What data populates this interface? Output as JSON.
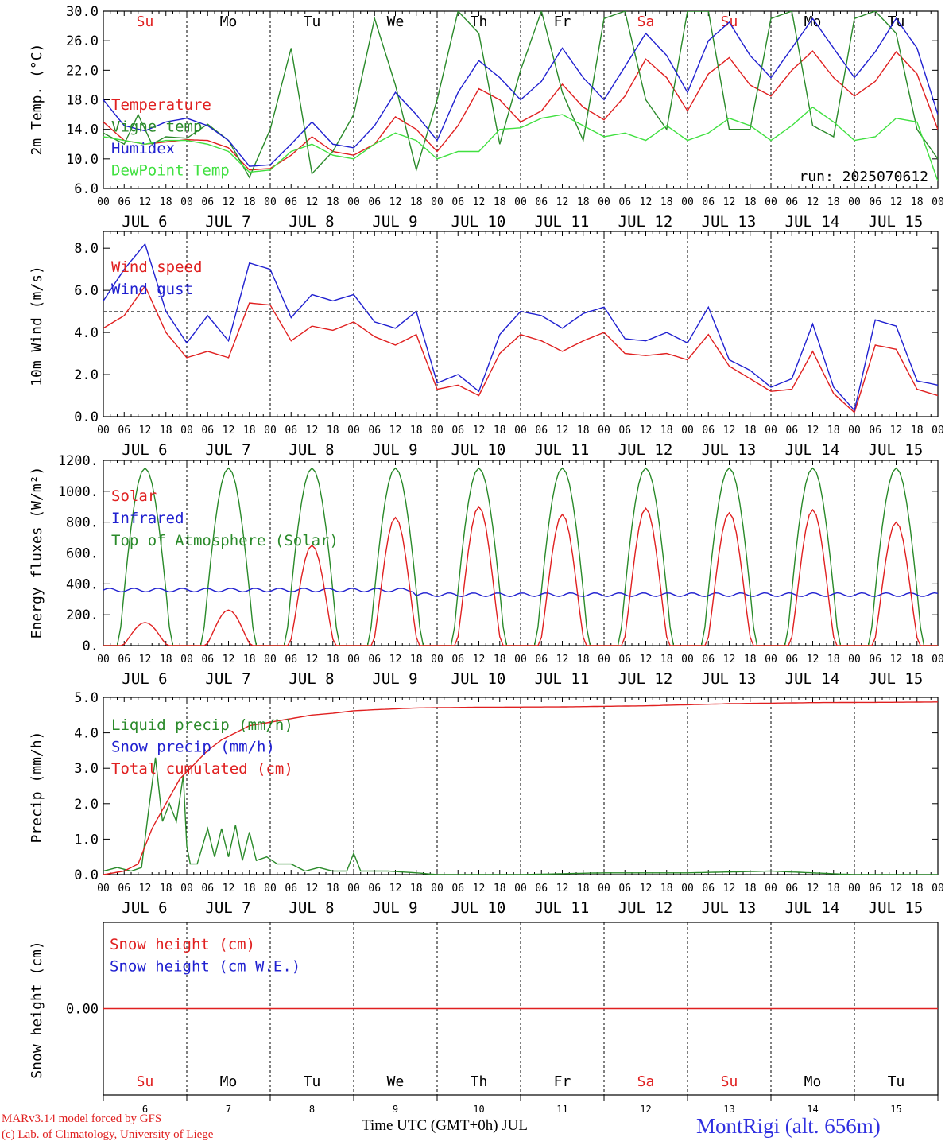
{
  "common": {
    "hour_labels": [
      "00",
      "06",
      "12",
      "18"
    ],
    "end_label": "00",
    "date_month": "JUL",
    "dates": [
      "6",
      "7",
      "8",
      "9",
      "10",
      "11",
      "12",
      "13",
      "14",
      "15"
    ],
    "weekdays": [
      "Su",
      "Mo",
      "Tu",
      "We",
      "Th",
      "Fr",
      "Sa",
      "Su",
      "Mo",
      "Tu"
    ],
    "weekday_colors": [
      "#e02020",
      "#000000",
      "#000000",
      "#000000",
      "#000000",
      "#000000",
      "#e02020",
      "#e02020",
      "#000000",
      "#000000"
    ],
    "x_range_hours": [
      0,
      240
    ]
  },
  "chart_data": [
    {
      "type": "line",
      "ylabel": "2m Temp. (°C)",
      "ylim": [
        6,
        30
      ],
      "yticks": [
        "6.0",
        "10.0",
        "14.0",
        "18.0",
        "22.0",
        "26.0",
        "30.0"
      ],
      "annotation": "run: 2025070612",
      "x_unit": "hours since JUL 6 00 UTC",
      "series": [
        {
          "name": "Temperature",
          "color": "#e02020",
          "x": [
            0,
            6,
            12,
            18,
            24,
            30,
            36,
            42,
            48,
            54,
            60,
            66,
            72,
            78,
            84,
            90,
            96,
            102,
            108,
            114,
            120,
            126,
            132,
            138,
            144,
            150,
            156,
            162,
            168,
            174,
            180,
            186,
            192,
            198,
            204,
            210,
            216,
            222,
            228,
            234,
            240
          ],
          "values": [
            15.0,
            12.5,
            12.0,
            12.3,
            12.6,
            12.5,
            11.5,
            8.5,
            8.7,
            10.5,
            13.0,
            11.0,
            10.5,
            12.0,
            15.7,
            14.0,
            11.0,
            14.5,
            19.5,
            18.0,
            15.0,
            16.5,
            20.1,
            17.0,
            15.3,
            18.5,
            23.5,
            21.0,
            16.5,
            21.5,
            23.7,
            20.0,
            18.5,
            22.0,
            24.6,
            21.0,
            18.5,
            20.5,
            24.5,
            21.5,
            14.0
          ]
        },
        {
          "name": "Vigne temp",
          "color": "#2a8a2a",
          "x": [
            0,
            6,
            10,
            14,
            18,
            24,
            30,
            36,
            42,
            48,
            54,
            60,
            66,
            72,
            78,
            84,
            90,
            96,
            102,
            108,
            114,
            120,
            126,
            132,
            138,
            144,
            150,
            156,
            162,
            168,
            174,
            180,
            186,
            192,
            198,
            204,
            210,
            216,
            222,
            228,
            234,
            240
          ],
          "values": [
            13.5,
            12.0,
            16.0,
            12.0,
            13.0,
            12.8,
            14.7,
            12.5,
            7.5,
            14.0,
            25.0,
            8.0,
            11.0,
            16.0,
            29.0,
            20.0,
            8.5,
            18.0,
            30.0,
            27.0,
            12.0,
            22.0,
            30.0,
            19.0,
            12.5,
            29.0,
            30.0,
            18.0,
            14.0,
            30.0,
            30.0,
            14.0,
            14.0,
            29.0,
            30.0,
            14.5,
            13.0,
            29.0,
            30.0,
            27.0,
            14.0,
            10.0
          ]
        },
        {
          "name": "Humidex",
          "color": "#2020d0",
          "x": [
            0,
            6,
            12,
            18,
            24,
            30,
            36,
            42,
            48,
            54,
            60,
            66,
            72,
            78,
            84,
            90,
            96,
            102,
            108,
            114,
            120,
            126,
            132,
            138,
            144,
            150,
            156,
            162,
            168,
            174,
            180,
            186,
            192,
            198,
            204,
            210,
            216,
            222,
            228,
            234,
            240
          ],
          "values": [
            18.0,
            14.5,
            13.8,
            15.0,
            15.5,
            14.5,
            12.5,
            9.0,
            9.2,
            12.0,
            15.0,
            12.0,
            11.5,
            14.5,
            19.0,
            16.0,
            12.5,
            19.0,
            23.3,
            21.0,
            18.0,
            20.5,
            25.0,
            21.0,
            18.0,
            22.5,
            27.0,
            24.0,
            19.0,
            26.0,
            28.5,
            24.0,
            21.0,
            25.0,
            29.0,
            25.0,
            21.0,
            24.5,
            29.0,
            25.0,
            16.0
          ]
        },
        {
          "name": "DewPoint Temp",
          "color": "#40e040",
          "x": [
            0,
            6,
            12,
            18,
            24,
            30,
            36,
            42,
            48,
            54,
            60,
            66,
            72,
            78,
            84,
            90,
            96,
            102,
            108,
            114,
            120,
            126,
            132,
            138,
            144,
            150,
            156,
            162,
            168,
            174,
            180,
            186,
            192,
            198,
            204,
            210,
            216,
            222,
            228,
            234,
            240
          ],
          "values": [
            13.0,
            12.5,
            12.0,
            12.5,
            12.5,
            12.0,
            11.0,
            8.2,
            8.5,
            11.0,
            12.0,
            10.5,
            10.0,
            12.0,
            13.5,
            12.5,
            10.0,
            11.0,
            11.0,
            14.0,
            14.2,
            15.5,
            16.0,
            14.5,
            13.0,
            13.5,
            12.5,
            14.5,
            12.5,
            13.5,
            15.5,
            14.5,
            12.5,
            14.5,
            17.0,
            15.0,
            12.5,
            13.0,
            15.5,
            15.0,
            7.0
          ]
        }
      ]
    },
    {
      "type": "line",
      "ylabel": "10m Wind (m/s)",
      "ylim": [
        0,
        8.8
      ],
      "yticks": [
        "0.0",
        "2.0",
        "4.0",
        "6.0",
        "8.0"
      ],
      "reference_line": 5.0,
      "x_unit": "hours since JUL 6 00 UTC",
      "series": [
        {
          "name": "Wind speed",
          "color": "#e02020",
          "x": [
            0,
            6,
            12,
            18,
            24,
            30,
            36,
            42,
            48,
            54,
            60,
            66,
            72,
            78,
            84,
            90,
            96,
            102,
            108,
            114,
            120,
            126,
            132,
            138,
            144,
            150,
            156,
            162,
            168,
            174,
            180,
            186,
            192,
            198,
            204,
            210,
            216,
            222,
            228,
            234,
            240
          ],
          "values": [
            4.2,
            4.8,
            6.2,
            4.0,
            2.8,
            3.1,
            2.8,
            5.4,
            5.3,
            3.6,
            4.3,
            4.1,
            4.5,
            3.8,
            3.4,
            3.9,
            1.3,
            1.5,
            1.0,
            3.0,
            3.9,
            3.6,
            3.1,
            3.6,
            4.0,
            3.0,
            2.9,
            3.0,
            2.7,
            3.9,
            2.4,
            1.8,
            1.2,
            1.3,
            3.1,
            1.1,
            0.2,
            3.4,
            3.2,
            1.3,
            1.0
          ]
        },
        {
          "name": "Wind gust",
          "color": "#2020d0",
          "x": [
            0,
            6,
            12,
            18,
            24,
            30,
            36,
            42,
            48,
            54,
            60,
            66,
            72,
            78,
            84,
            90,
            96,
            102,
            108,
            114,
            120,
            126,
            132,
            138,
            144,
            150,
            156,
            162,
            168,
            174,
            180,
            186,
            192,
            198,
            204,
            210,
            216,
            222,
            228,
            234,
            240
          ],
          "values": [
            5.5,
            7.0,
            8.2,
            5.0,
            3.5,
            4.8,
            3.6,
            7.3,
            7.0,
            4.7,
            5.8,
            5.5,
            5.8,
            4.5,
            4.2,
            5.0,
            1.6,
            2.0,
            1.2,
            3.9,
            5.0,
            4.8,
            4.2,
            4.9,
            5.2,
            3.7,
            3.6,
            4.0,
            3.5,
            5.2,
            2.7,
            2.2,
            1.4,
            1.8,
            4.4,
            1.4,
            0.3,
            4.6,
            4.3,
            1.7,
            1.5
          ]
        }
      ]
    },
    {
      "type": "line",
      "ylabel": "Energy fluxes (W/m²)",
      "ylim": [
        0,
        1200
      ],
      "yticks": [
        "0.",
        "200.",
        "400.",
        "600.",
        "800.",
        "1000.",
        "1200."
      ],
      "x_unit": "hours since JUL 6 00 UTC",
      "toa_peak": 1150,
      "solar_daily_peak": [
        150,
        230,
        650,
        830,
        900,
        850,
        890,
        860,
        880,
        800
      ],
      "infrared_value": 330,
      "series": [
        {
          "name": "Solar",
          "color": "#e02020"
        },
        {
          "name": "Infrared",
          "color": "#2020d0"
        },
        {
          "name": "Top of Atmosphere (Solar)",
          "color": "#2a8a2a"
        }
      ]
    },
    {
      "type": "line",
      "ylabel": "Precip (mm/h)",
      "ylim": [
        0,
        5
      ],
      "yticks": [
        "0.0",
        "1.0",
        "2.0",
        "3.0",
        "4.0",
        "5.0"
      ],
      "x_unit": "hours since JUL 6 00 UTC",
      "series": [
        {
          "name": "Liquid precip (mm/h)",
          "color": "#2a8a2a",
          "x": [
            0,
            4,
            8,
            11,
            13,
            15,
            17,
            19,
            21,
            23,
            24,
            25,
            27,
            30,
            32,
            34,
            36,
            38,
            40,
            42,
            44,
            47,
            50,
            54,
            58,
            62,
            66,
            70,
            72,
            74,
            78,
            82,
            90,
            96,
            120,
            144,
            168,
            192,
            216,
            240
          ],
          "values": [
            0.1,
            0.2,
            0.1,
            0.2,
            1.8,
            3.3,
            1.5,
            2.0,
            1.5,
            2.8,
            0.8,
            0.3,
            0.3,
            1.3,
            0.5,
            1.3,
            0.5,
            1.4,
            0.4,
            1.2,
            0.4,
            0.5,
            0.3,
            0.3,
            0.1,
            0.2,
            0.1,
            0.1,
            0.6,
            0.1,
            0.1,
            0.1,
            0.05,
            0.0,
            0.0,
            0.05,
            0.05,
            0.1,
            0.0,
            0.0
          ]
        },
        {
          "name": "Snow precip (mm/h)",
          "color": "#2020d0"
        },
        {
          "name": "Total cumulated (cm)",
          "color": "#e02020",
          "x": [
            0,
            6,
            10,
            14,
            18,
            22,
            26,
            30,
            34,
            38,
            42,
            48,
            54,
            60,
            66,
            72,
            78,
            90,
            108,
            132,
            156,
            180,
            204,
            228,
            240
          ],
          "values": [
            0.0,
            0.1,
            0.3,
            1.3,
            2.0,
            2.7,
            3.1,
            3.5,
            3.8,
            4.0,
            4.2,
            4.3,
            4.4,
            4.5,
            4.55,
            4.62,
            4.65,
            4.7,
            4.72,
            4.73,
            4.76,
            4.82,
            4.85,
            4.86,
            4.87
          ]
        }
      ]
    },
    {
      "type": "line",
      "ylabel": "Snow height (cm)",
      "yticks": [
        "0.00"
      ],
      "x_unit": "hours since JUL 6 00 UTC",
      "series": [
        {
          "name": "Snow height (cm)",
          "color": "#e02020",
          "x": [
            0,
            240
          ],
          "values": [
            0,
            0
          ]
        },
        {
          "name": "Snow height (cm W.E.)",
          "color": "#2020d0"
        }
      ]
    }
  ],
  "footer": {
    "model_line": "MARv3.14 model forced by GFS",
    "copyright_line": "(c) Lab. of Climatology, University of Liege",
    "xaxis_title": "Time UTC (GMT+0h) JUL",
    "station": "MontRigi (alt. 656m)"
  }
}
